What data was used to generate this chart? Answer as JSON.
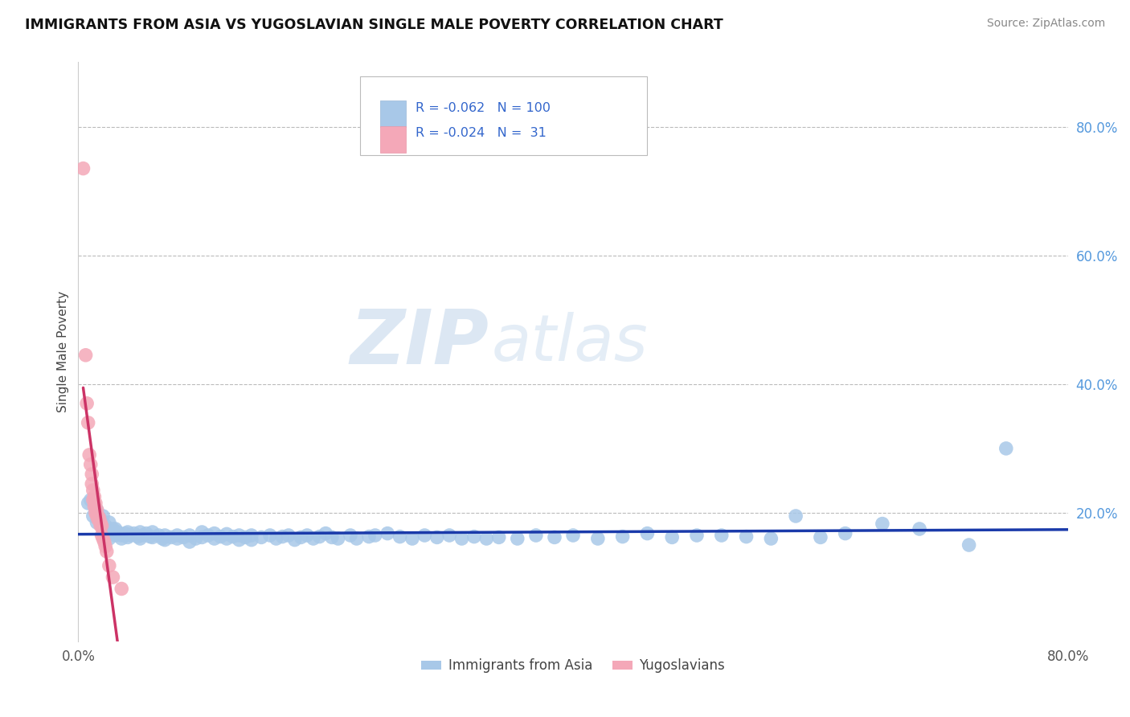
{
  "title": "IMMIGRANTS FROM ASIA VS YUGOSLAVIAN SINGLE MALE POVERTY CORRELATION CHART",
  "source": "Source: ZipAtlas.com",
  "ylabel": "Single Male Poverty",
  "xlim": [
    0.0,
    0.8
  ],
  "ylim": [
    0.0,
    0.9
  ],
  "legend_label1": "Immigrants from Asia",
  "legend_label2": "Yugoslavians",
  "color_blue": "#A8C8E8",
  "color_pink": "#F4A8B8",
  "trendline_blue": "#1a3aaa",
  "trendline_pink": "#cc3366",
  "watermark_zip": "ZIP",
  "watermark_atlas": "atlas",
  "background_color": "#ffffff",
  "grid_color": "#bbbbbb",
  "blue_scatter": [
    [
      0.008,
      0.215
    ],
    [
      0.01,
      0.22
    ],
    [
      0.012,
      0.195
    ],
    [
      0.015,
      0.205
    ],
    [
      0.015,
      0.185
    ],
    [
      0.018,
      0.19
    ],
    [
      0.02,
      0.195
    ],
    [
      0.02,
      0.175
    ],
    [
      0.022,
      0.18
    ],
    [
      0.025,
      0.185
    ],
    [
      0.025,
      0.17
    ],
    [
      0.025,
      0.16
    ],
    [
      0.028,
      0.175
    ],
    [
      0.03,
      0.175
    ],
    [
      0.03,
      0.165
    ],
    [
      0.032,
      0.17
    ],
    [
      0.035,
      0.165
    ],
    [
      0.035,
      0.16
    ],
    [
      0.038,
      0.168
    ],
    [
      0.04,
      0.17
    ],
    [
      0.04,
      0.162
    ],
    [
      0.042,
      0.165
    ],
    [
      0.045,
      0.168
    ],
    [
      0.048,
      0.163
    ],
    [
      0.05,
      0.17
    ],
    [
      0.05,
      0.16
    ],
    [
      0.052,
      0.165
    ],
    [
      0.055,
      0.168
    ],
    [
      0.058,
      0.163
    ],
    [
      0.06,
      0.17
    ],
    [
      0.06,
      0.162
    ],
    [
      0.065,
      0.165
    ],
    [
      0.068,
      0.16
    ],
    [
      0.07,
      0.165
    ],
    [
      0.07,
      0.158
    ],
    [
      0.075,
      0.162
    ],
    [
      0.08,
      0.165
    ],
    [
      0.08,
      0.16
    ],
    [
      0.085,
      0.162
    ],
    [
      0.09,
      0.165
    ],
    [
      0.09,
      0.155
    ],
    [
      0.095,
      0.16
    ],
    [
      0.1,
      0.17
    ],
    [
      0.1,
      0.162
    ],
    [
      0.105,
      0.165
    ],
    [
      0.11,
      0.168
    ],
    [
      0.11,
      0.16
    ],
    [
      0.115,
      0.163
    ],
    [
      0.12,
      0.167
    ],
    [
      0.12,
      0.16
    ],
    [
      0.125,
      0.163
    ],
    [
      0.13,
      0.165
    ],
    [
      0.13,
      0.158
    ],
    [
      0.135,
      0.162
    ],
    [
      0.14,
      0.165
    ],
    [
      0.14,
      0.158
    ],
    [
      0.148,
      0.162
    ],
    [
      0.155,
      0.165
    ],
    [
      0.16,
      0.16
    ],
    [
      0.165,
      0.163
    ],
    [
      0.17,
      0.165
    ],
    [
      0.175,
      0.158
    ],
    [
      0.18,
      0.162
    ],
    [
      0.185,
      0.165
    ],
    [
      0.19,
      0.16
    ],
    [
      0.195,
      0.163
    ],
    [
      0.2,
      0.168
    ],
    [
      0.205,
      0.162
    ],
    [
      0.21,
      0.16
    ],
    [
      0.22,
      0.165
    ],
    [
      0.225,
      0.16
    ],
    [
      0.235,
      0.163
    ],
    [
      0.24,
      0.165
    ],
    [
      0.25,
      0.168
    ],
    [
      0.26,
      0.163
    ],
    [
      0.27,
      0.16
    ],
    [
      0.28,
      0.165
    ],
    [
      0.29,
      0.162
    ],
    [
      0.3,
      0.165
    ],
    [
      0.31,
      0.16
    ],
    [
      0.32,
      0.163
    ],
    [
      0.33,
      0.16
    ],
    [
      0.34,
      0.162
    ],
    [
      0.355,
      0.16
    ],
    [
      0.37,
      0.165
    ],
    [
      0.385,
      0.162
    ],
    [
      0.4,
      0.165
    ],
    [
      0.42,
      0.16
    ],
    [
      0.44,
      0.163
    ],
    [
      0.46,
      0.168
    ],
    [
      0.48,
      0.162
    ],
    [
      0.5,
      0.165
    ],
    [
      0.52,
      0.165
    ],
    [
      0.54,
      0.163
    ],
    [
      0.56,
      0.16
    ],
    [
      0.58,
      0.195
    ],
    [
      0.6,
      0.162
    ],
    [
      0.62,
      0.168
    ],
    [
      0.65,
      0.183
    ],
    [
      0.68,
      0.175
    ],
    [
      0.72,
      0.15
    ],
    [
      0.75,
      0.3
    ]
  ],
  "pink_scatter": [
    [
      0.004,
      0.735
    ],
    [
      0.006,
      0.445
    ],
    [
      0.007,
      0.37
    ],
    [
      0.008,
      0.34
    ],
    [
      0.009,
      0.29
    ],
    [
      0.01,
      0.275
    ],
    [
      0.011,
      0.26
    ],
    [
      0.011,
      0.245
    ],
    [
      0.012,
      0.235
    ],
    [
      0.012,
      0.22
    ],
    [
      0.013,
      0.225
    ],
    [
      0.013,
      0.21
    ],
    [
      0.014,
      0.215
    ],
    [
      0.014,
      0.2
    ],
    [
      0.015,
      0.205
    ],
    [
      0.015,
      0.195
    ],
    [
      0.016,
      0.195
    ],
    [
      0.016,
      0.19
    ],
    [
      0.017,
      0.192
    ],
    [
      0.017,
      0.188
    ],
    [
      0.018,
      0.185
    ],
    [
      0.018,
      0.18
    ],
    [
      0.019,
      0.18
    ],
    [
      0.019,
      0.165
    ],
    [
      0.02,
      0.16
    ],
    [
      0.021,
      0.155
    ],
    [
      0.022,
      0.148
    ],
    [
      0.023,
      0.14
    ],
    [
      0.025,
      0.118
    ],
    [
      0.028,
      0.1
    ],
    [
      0.035,
      0.082
    ]
  ]
}
